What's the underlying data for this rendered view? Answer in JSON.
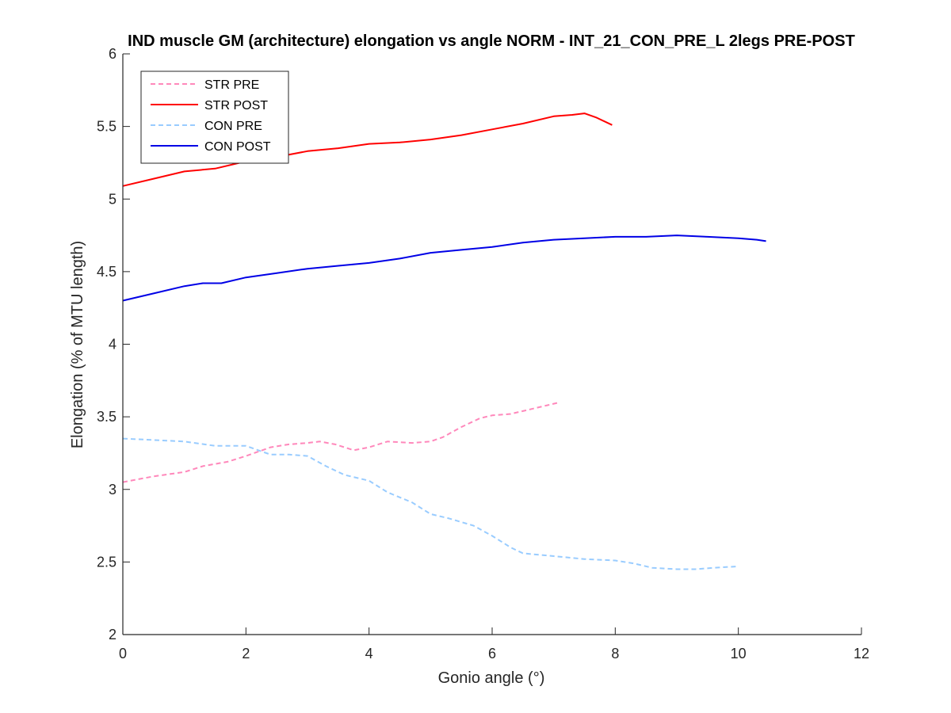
{
  "chart_data": {
    "type": "line",
    "title": "IND muscle GM (architecture) elongation vs angle NORM - INT_21_CON_PRE_L 2legs PRE-POST",
    "xlabel": "Gonio angle (°)",
    "ylabel": "Elongation (% of MTU length)",
    "xlim": [
      0,
      12
    ],
    "ylim": [
      2,
      6
    ],
    "xticks": [
      "0",
      "2",
      "4",
      "6",
      "8",
      "10",
      "12"
    ],
    "yticks": [
      "2",
      "2.5",
      "3",
      "3.5",
      "4",
      "4.5",
      "5",
      "5.5",
      "6"
    ],
    "grid": false,
    "legend_position": "top-left",
    "series": [
      {
        "name": "STR PRE",
        "color": "#ff88bb",
        "style": "dashed",
        "x": [
          0,
          0.5,
          1,
          1.3,
          1.7,
          2,
          2.4,
          2.7,
          3,
          3.2,
          3.45,
          3.75,
          4,
          4.3,
          4.7,
          5,
          5.2,
          5.5,
          5.8,
          6,
          6.3,
          6.6,
          6.9,
          7.1
        ],
        "y": [
          3.05,
          3.09,
          3.12,
          3.16,
          3.19,
          3.23,
          3.29,
          3.31,
          3.32,
          3.33,
          3.31,
          3.27,
          3.29,
          3.33,
          3.32,
          3.33,
          3.36,
          3.43,
          3.49,
          3.51,
          3.52,
          3.55,
          3.58,
          3.6
        ]
      },
      {
        "name": "STR POST",
        "color": "#ff0000",
        "style": "solid",
        "x": [
          0,
          0.5,
          1,
          1.5,
          2,
          2.5,
          3,
          3.5,
          4,
          4.5,
          5,
          5.5,
          6,
          6.5,
          7,
          7.3,
          7.5,
          7.7,
          7.95
        ],
        "y": [
          5.09,
          5.14,
          5.19,
          5.21,
          5.26,
          5.29,
          5.33,
          5.35,
          5.38,
          5.39,
          5.41,
          5.44,
          5.48,
          5.52,
          5.57,
          5.58,
          5.59,
          5.56,
          5.51
        ]
      },
      {
        "name": "CON PRE",
        "color": "#99ccff",
        "style": "dashed",
        "x": [
          0,
          0.5,
          1,
          1.5,
          2,
          2.4,
          2.7,
          3,
          3.3,
          3.6,
          4,
          4.3,
          4.7,
          5,
          5.3,
          5.7,
          6,
          6.3,
          6.5,
          7,
          7.5,
          8,
          8.3,
          8.6,
          9,
          9.3,
          9.6,
          10
        ],
        "y": [
          3.35,
          3.34,
          3.33,
          3.3,
          3.3,
          3.24,
          3.24,
          3.23,
          3.16,
          3.1,
          3.06,
          2.98,
          2.91,
          2.83,
          2.8,
          2.75,
          2.68,
          2.6,
          2.56,
          2.54,
          2.52,
          2.51,
          2.49,
          2.46,
          2.45,
          2.45,
          2.46,
          2.47
        ]
      },
      {
        "name": "CON POST",
        "color": "#0000e6",
        "style": "solid",
        "x": [
          0,
          0.5,
          1,
          1.3,
          1.6,
          2,
          2.5,
          3,
          3.5,
          4,
          4.5,
          5,
          5.5,
          6,
          6.5,
          7,
          7.5,
          8,
          8.5,
          9,
          9.5,
          10,
          10.3,
          10.45
        ],
        "y": [
          4.3,
          4.35,
          4.4,
          4.42,
          4.42,
          4.46,
          4.49,
          4.52,
          4.54,
          4.56,
          4.59,
          4.63,
          4.65,
          4.67,
          4.7,
          4.72,
          4.73,
          4.74,
          4.74,
          4.75,
          4.74,
          4.73,
          4.72,
          4.71
        ]
      }
    ]
  }
}
